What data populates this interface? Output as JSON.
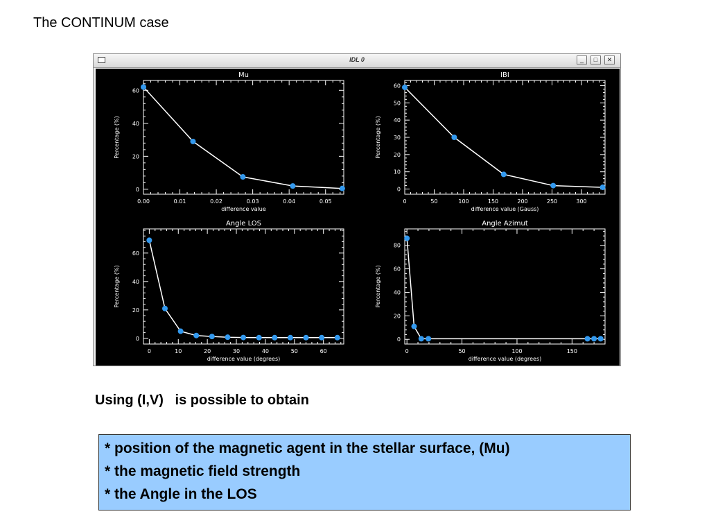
{
  "slide": {
    "title": "The CONTINUM case",
    "subtitle": "Using (I,V)   is possible to obtain",
    "bullets": [
      "* position of the magnetic agent in the stellar surface,  (Mu)",
      "* the magnetic field strength",
      "* the Angle in the LOS"
    ]
  },
  "window": {
    "title": "IDL 0",
    "minimize_label": "_",
    "maximize_label": "□",
    "close_label": "✕"
  },
  "colors": {
    "plot_bg": "#000000",
    "axis": "#ffffff",
    "line": "#ffffff",
    "marker": "#3399ee"
  },
  "chart_data": [
    {
      "type": "line",
      "title": "Mu",
      "xlabel": "difference value",
      "ylabel": "Percentage (%)",
      "xlim": [
        0,
        0.055
      ],
      "ylim": [
        -3,
        66
      ],
      "xticks": [
        0,
        0.01,
        0.02,
        0.03,
        0.04,
        0.05
      ],
      "xtick_labels": [
        "0.00",
        "0.01",
        "0.02",
        "0.03",
        "0.04",
        "0.05"
      ],
      "yticks": [
        0,
        20,
        40,
        60
      ],
      "x": [
        0.0,
        0.0136,
        0.0273,
        0.041,
        0.0546
      ],
      "y": [
        62,
        29,
        7.5,
        2,
        0.5
      ]
    },
    {
      "type": "line",
      "title": "IBI",
      "xlabel": "difference value (Gauss)",
      "ylabel": "Percentage (%)",
      "xlim": [
        0,
        340
      ],
      "ylim": [
        -3,
        63
      ],
      "xticks": [
        0,
        50,
        100,
        150,
        200,
        250,
        300
      ],
      "xtick_labels": [
        "0",
        "50",
        "100",
        "150",
        "200",
        "250",
        "300"
      ],
      "yticks": [
        0,
        10,
        20,
        30,
        40,
        50,
        60
      ],
      "x": [
        0,
        84,
        168,
        252,
        336
      ],
      "y": [
        59,
        30,
        8.5,
        2,
        1
      ]
    },
    {
      "type": "line",
      "title": "Angle LOS",
      "xlabel": "difference value (degrees)",
      "ylabel": "Percentage (%)",
      "xlim": [
        -2,
        67
      ],
      "ylim": [
        -4,
        77
      ],
      "xticks": [
        0,
        10,
        20,
        30,
        40,
        50,
        60
      ],
      "xtick_labels": [
        "0",
        "10",
        "20",
        "30",
        "40",
        "50",
        "60"
      ],
      "yticks": [
        0,
        20,
        40,
        60
      ],
      "x": [
        0,
        5.4,
        10.8,
        16.2,
        21.6,
        27,
        32.4,
        37.8,
        43.2,
        48.6,
        54,
        59.4,
        64.8
      ],
      "y": [
        69,
        21,
        5,
        2,
        1.3,
        0.8,
        0.6,
        0.5,
        0.5,
        0.5,
        0.5,
        0.5,
        0.5
      ]
    },
    {
      "type": "line",
      "title": "Angle Azimut",
      "xlabel": "difference value (degrees)",
      "ylabel": "Percentage (%)",
      "xlim": [
        -2,
        180
      ],
      "ylim": [
        -4,
        94
      ],
      "xticks": [
        0,
        50,
        100,
        150
      ],
      "xtick_labels": [
        "0",
        "50",
        "100",
        "150"
      ],
      "yticks": [
        0,
        20,
        40,
        60,
        80
      ],
      "x": [
        0,
        6.5,
        13,
        19.5,
        164,
        170,
        176
      ],
      "y": [
        86,
        11,
        0.5,
        0.5,
        0.5,
        0.5,
        0.5
      ]
    }
  ]
}
